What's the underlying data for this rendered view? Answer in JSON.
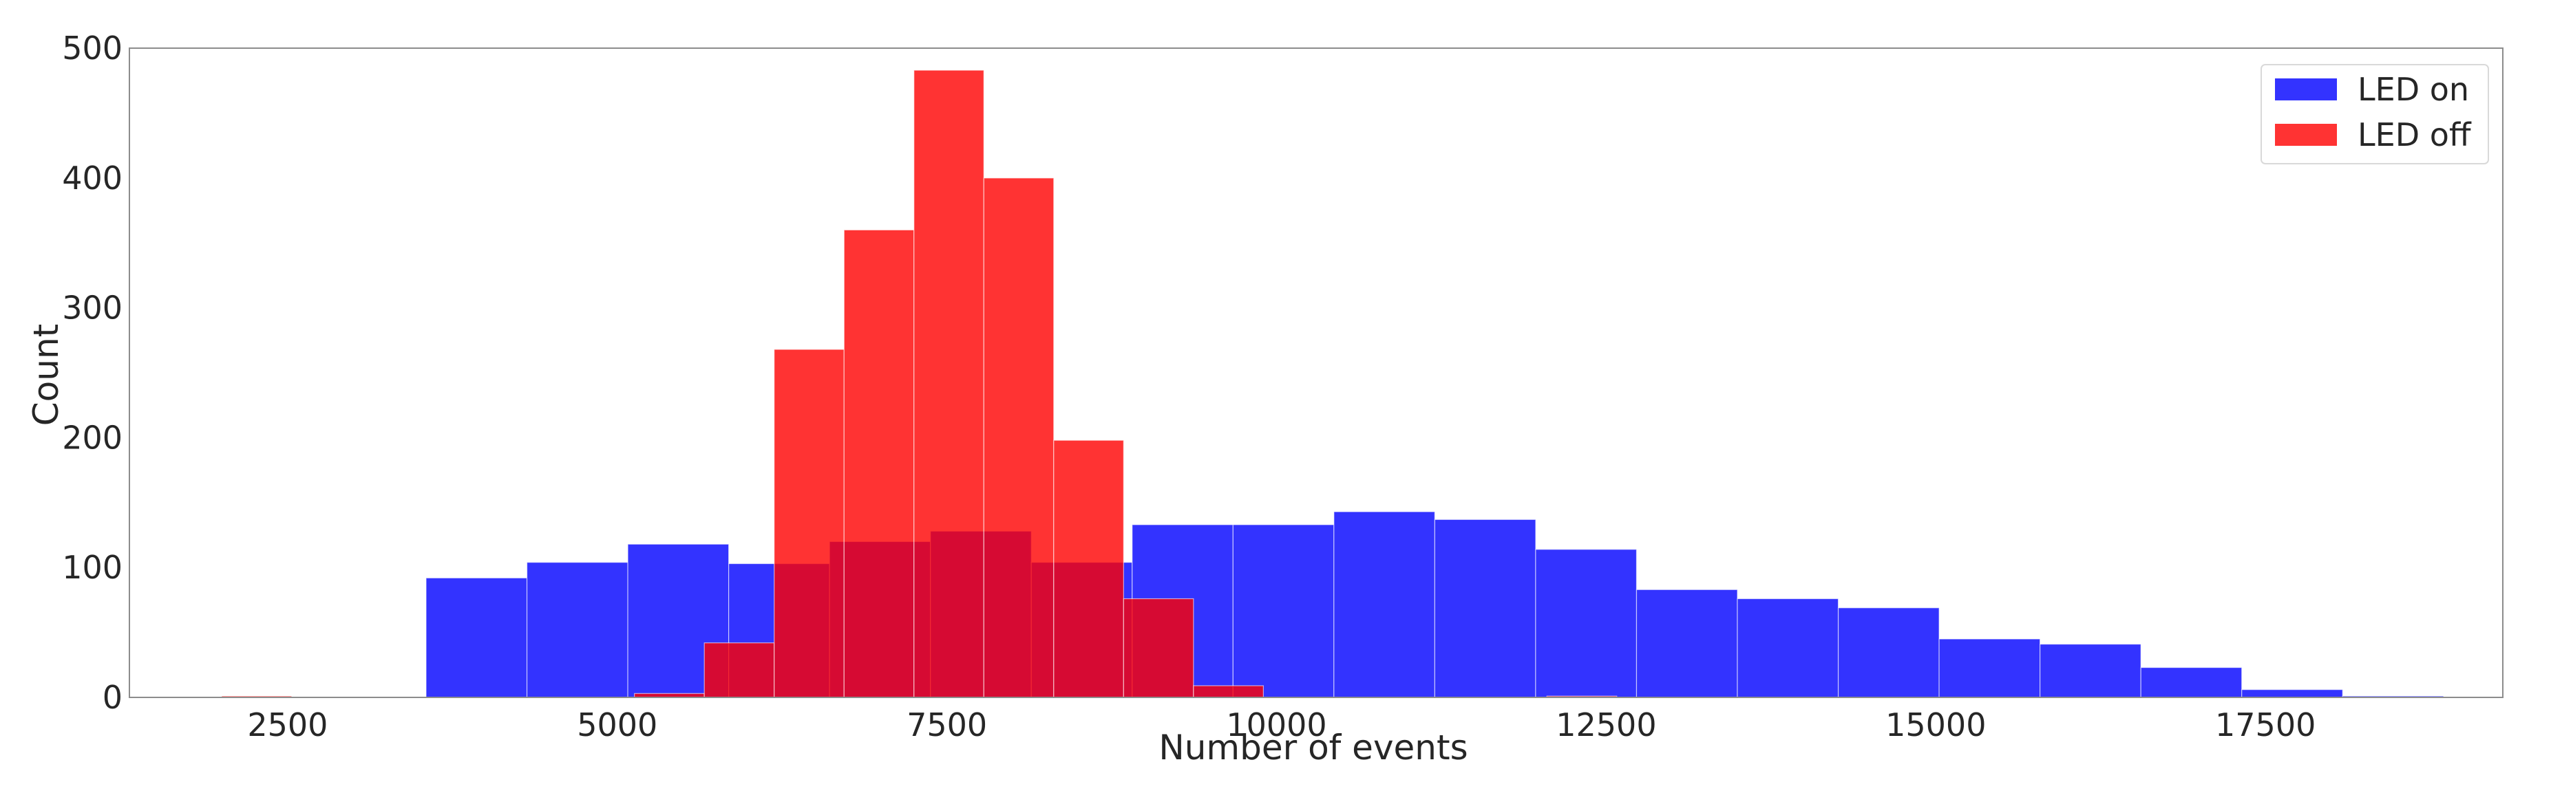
{
  "chart_data": {
    "type": "histogram",
    "title": "",
    "xlabel": "Number of events",
    "ylabel": "Count",
    "xlim": [
      1300,
      19300
    ],
    "ylim": [
      0,
      500
    ],
    "x_ticks": [
      2500,
      5000,
      7500,
      10000,
      12500,
      15000,
      17500
    ],
    "y_ticks": [
      0,
      100,
      200,
      300,
      400,
      500
    ],
    "grid": false,
    "legend_position": "top-right",
    "series": [
      {
        "name": "LED on",
        "color": "#0000ff",
        "opacity": 0.8,
        "bins": [
          {
            "x0": 3550,
            "x1": 4315,
            "count": 92
          },
          {
            "x0": 4315,
            "x1": 5080,
            "count": 104
          },
          {
            "x0": 5080,
            "x1": 5845,
            "count": 118
          },
          {
            "x0": 5845,
            "x1": 6610,
            "count": 103
          },
          {
            "x0": 6610,
            "x1": 7375,
            "count": 120
          },
          {
            "x0": 7375,
            "x1": 8140,
            "count": 128
          },
          {
            "x0": 8140,
            "x1": 8905,
            "count": 104
          },
          {
            "x0": 8905,
            "x1": 9670,
            "count": 133
          },
          {
            "x0": 9670,
            "x1": 10435,
            "count": 133
          },
          {
            "x0": 10435,
            "x1": 11200,
            "count": 143
          },
          {
            "x0": 11200,
            "x1": 11965,
            "count": 137
          },
          {
            "x0": 11965,
            "x1": 12730,
            "count": 114
          },
          {
            "x0": 12730,
            "x1": 13495,
            "count": 83
          },
          {
            "x0": 13495,
            "x1": 14260,
            "count": 76
          },
          {
            "x0": 14260,
            "x1": 15025,
            "count": 69
          },
          {
            "x0": 15025,
            "x1": 15790,
            "count": 45
          },
          {
            "x0": 15790,
            "x1": 16555,
            "count": 41
          },
          {
            "x0": 16555,
            "x1": 17320,
            "count": 23
          },
          {
            "x0": 17320,
            "x1": 18085,
            "count": 6
          },
          {
            "x0": 18085,
            "x1": 18850,
            "count": 1
          }
        ]
      },
      {
        "name": "LED off",
        "color": "#ff0000",
        "opacity": 0.8,
        "bins": [
          {
            "x0": 2000,
            "x1": 2530,
            "count": 1
          },
          {
            "x0": 5130,
            "x1": 5660,
            "count": 3
          },
          {
            "x0": 5660,
            "x1": 6190,
            "count": 42
          },
          {
            "x0": 6190,
            "x1": 6720,
            "count": 268
          },
          {
            "x0": 6720,
            "x1": 7250,
            "count": 360
          },
          {
            "x0": 7250,
            "x1": 7780,
            "count": 483
          },
          {
            "x0": 7780,
            "x1": 8310,
            "count": 400
          },
          {
            "x0": 8310,
            "x1": 8840,
            "count": 198
          },
          {
            "x0": 8840,
            "x1": 9370,
            "count": 76
          },
          {
            "x0": 9370,
            "x1": 9900,
            "count": 9
          },
          {
            "x0": 12050,
            "x1": 12580,
            "count": 1
          }
        ]
      }
    ]
  }
}
